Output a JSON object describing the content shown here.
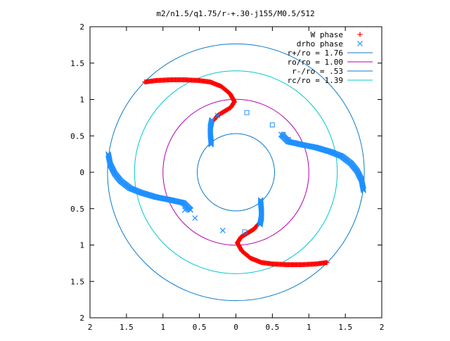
{
  "chart_data": {
    "type": "scatter",
    "title": "m2/n1.5/q1.75/r-+.30-j155/M0.5/512",
    "xlabel": "",
    "ylabel": "",
    "xlim": [
      -2,
      2
    ],
    "ylim": [
      -2,
      2
    ],
    "xticks": [
      -2,
      -1.5,
      -1,
      -0.5,
      0,
      0.5,
      1,
      1.5,
      2
    ],
    "yticks": [
      -2,
      -1.5,
      -1,
      -0.5,
      0,
      0.5,
      1,
      1.5,
      2
    ],
    "xtick_labels": [
      "2",
      "1.5",
      "1",
      "0.5",
      "0",
      "0.5",
      "1",
      "1.5",
      "2"
    ],
    "ytick_labels": [
      "2",
      "1.5",
      "1",
      "0.5",
      "0",
      "0.5",
      "1",
      "1.5",
      "2"
    ],
    "grid": false,
    "legend_position": "top-right",
    "series": [
      {
        "name": "W phase",
        "kind": "points",
        "marker": "plus",
        "color": "#ff0000",
        "arms": [
          [
            [
              -1.25,
              1.24
            ],
            [
              -1.1,
              1.26
            ],
            [
              -0.9,
              1.27
            ],
            [
              -0.7,
              1.27
            ],
            [
              -0.5,
              1.26
            ],
            [
              -0.35,
              1.24
            ],
            [
              -0.2,
              1.18
            ],
            [
              -0.08,
              1.08
            ],
            [
              -0.02,
              0.97
            ],
            [
              -0.07,
              0.89
            ],
            [
              -0.17,
              0.83
            ],
            [
              -0.25,
              0.78
            ],
            [
              -0.3,
              0.72
            ]
          ],
          [
            [
              1.25,
              -1.24
            ],
            [
              1.1,
              -1.26
            ],
            [
              0.9,
              -1.27
            ],
            [
              0.7,
              -1.27
            ],
            [
              0.5,
              -1.26
            ],
            [
              0.35,
              -1.24
            ],
            [
              0.2,
              -1.18
            ],
            [
              0.08,
              -1.08
            ],
            [
              0.02,
              -0.97
            ],
            [
              0.07,
              -0.89
            ],
            [
              0.17,
              -0.83
            ],
            [
              0.25,
              -0.78
            ],
            [
              0.3,
              -0.72
            ]
          ]
        ]
      },
      {
        "name": "drho phase",
        "kind": "points",
        "marker": "cross",
        "color": "#1e90ff",
        "arms": [
          [
            [
              -0.33,
              0.72
            ],
            [
              -0.35,
              0.62
            ],
            [
              -0.35,
              0.52
            ],
            [
              -0.34,
              0.42
            ],
            [
              -0.34,
              0.38
            ]
          ],
          [
            [
              0.33,
              -0.72
            ],
            [
              0.35,
              -0.62
            ],
            [
              0.35,
              -0.52
            ],
            [
              0.34,
              -0.42
            ],
            [
              0.34,
              -0.38
            ]
          ],
          [
            [
              0.62,
              0.52
            ],
            [
              0.72,
              0.42
            ],
            [
              0.9,
              0.38
            ],
            [
              1.1,
              0.34
            ],
            [
              1.3,
              0.28
            ],
            [
              1.45,
              0.22
            ],
            [
              1.58,
              0.12
            ],
            [
              1.66,
              0.02
            ],
            [
              1.72,
              -0.1
            ],
            [
              1.75,
              -0.25
            ]
          ],
          [
            [
              -0.62,
              -0.52
            ],
            [
              -0.72,
              -0.42
            ],
            [
              -0.9,
              -0.38
            ],
            [
              -1.1,
              -0.34
            ],
            [
              -1.3,
              -0.28
            ],
            [
              -1.45,
              -0.22
            ],
            [
              -1.58,
              -0.12
            ],
            [
              -1.66,
              -0.02
            ],
            [
              -1.72,
              0.1
            ],
            [
              -1.75,
              0.25
            ]
          ]
        ],
        "isolated": [
          [
            0.15,
            0.82
          ],
          [
            -0.25,
            0.78
          ],
          [
            0.5,
            0.65
          ],
          [
            -0.7,
            -0.52
          ],
          [
            0.72,
            0.45
          ],
          [
            -0.56,
            -0.63
          ],
          [
            0.65,
            0.52
          ],
          [
            -0.18,
            -0.8
          ],
          [
            0.12,
            -0.82
          ]
        ]
      }
    ],
    "circles": [
      {
        "name": "r+/ro = 1.76",
        "radius": 1.76,
        "color": "#0a7ac8"
      },
      {
        "name": "ro/ro = 1.00",
        "radius": 1.0,
        "color": "#b000b0"
      },
      {
        "name": "r-/ro = .53",
        "radius": 0.53,
        "color": "#0a7ac8"
      },
      {
        "name": "rc/ro = 1.39",
        "radius": 1.39,
        "color": "#00c8d0"
      }
    ]
  }
}
